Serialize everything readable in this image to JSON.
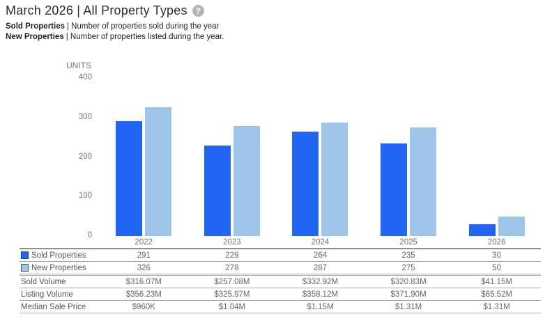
{
  "header": {
    "title": "March 2026 | All Property Types",
    "help_glyph": "?"
  },
  "descriptions": [
    {
      "term": "Sold Properties",
      "text": "| Number of properties sold during the year"
    },
    {
      "term": "New Properties",
      "text": "| Number of properties listed during the year."
    }
  ],
  "chart_data": {
    "type": "bar",
    "title": "March 2026 | All Property Types",
    "ylabel": "UNITS",
    "xlabel": "",
    "ylim": [
      0,
      400
    ],
    "yticks": [
      400,
      300,
      200,
      100,
      0
    ],
    "grid": false,
    "legend_position": "table-below",
    "categories": [
      "2022",
      "2023",
      "2024",
      "2025",
      "2026"
    ],
    "series": [
      {
        "name": "Sold Properties",
        "color": "#2166f3",
        "values": [
          291,
          229,
          264,
          235,
          30
        ]
      },
      {
        "name": "New Properties",
        "color": "#9fc5e8",
        "values": [
          326,
          278,
          287,
          275,
          50
        ]
      }
    ]
  },
  "table": {
    "rows": [
      {
        "label": "Sold Properties",
        "swatch": "#2166f3",
        "swatch_border": "#143f94",
        "values": [
          "291",
          "229",
          "264",
          "235",
          "30"
        ]
      },
      {
        "label": "New Properties",
        "swatch": "#9fc5e8",
        "swatch_border": "#39597b",
        "values": [
          "326",
          "278",
          "287",
          "275",
          "50"
        ]
      },
      {
        "label": "Sold Volume",
        "values": [
          "$316.07M",
          "$257.08M",
          "$332.92M",
          "$320.83M",
          "$41.15M"
        ]
      },
      {
        "label": "Listing Volume",
        "values": [
          "$356.23M",
          "$325.97M",
          "$358.12M",
          "$371.90M",
          "$65.52M"
        ]
      },
      {
        "label": "Median Sale Price",
        "values": [
          "$960K",
          "$1.04M",
          "$1.15M",
          "$1.31M",
          "$1.31M"
        ]
      }
    ]
  },
  "colors": {
    "sold_bar": "#2166f3",
    "new_bar": "#9fc5e8",
    "axis_text": "#757575",
    "table_line": "#a8a8a8"
  }
}
